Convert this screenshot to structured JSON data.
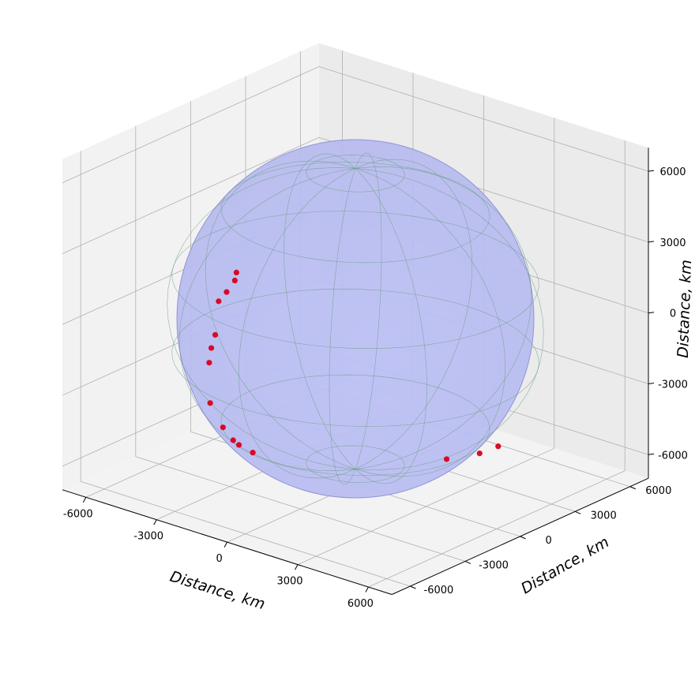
{
  "chart_data": {
    "type": "scatter3d",
    "xlabel": "Distance, km",
    "ylabel": "Distance, km",
    "zlabel": "Distance, km",
    "xlim": [
      -7000,
      7000
    ],
    "ylim": [
      -7000,
      7000
    ],
    "zlim": [
      -7000,
      7000
    ],
    "x_ticks": [
      "-6000",
      "-3000",
      "0",
      "3000",
      "6000"
    ],
    "y_ticks": [
      "-6000",
      "-3000",
      "0",
      "3000",
      "6000"
    ],
    "z_ticks": [
      "6000",
      "3000",
      "0",
      "-3000",
      "-6000"
    ],
    "grid": true,
    "sphere": {
      "radius_km": 6371,
      "color": "#a8acf0"
    },
    "point_color": "#d9001b",
    "points": [
      {
        "x": -6300,
        "y": 1600,
        "z": -600
      },
      {
        "x": -6290,
        "y": 1500,
        "z": -900
      },
      {
        "x": -6250,
        "y": 1000,
        "z": -1200
      },
      {
        "x": -6200,
        "y": 500,
        "z": -1400
      },
      {
        "x": -5800,
        "y": -200,
        "z": -2450
      },
      {
        "x": -5500,
        "y": -800,
        "z": -2700
      },
      {
        "x": -5200,
        "y": -1300,
        "z": -3050
      },
      {
        "x": -3600,
        "y": -3300,
        "z": -3550
      },
      {
        "x": -2200,
        "y": -4400,
        "z": -3750
      },
      {
        "x": -1300,
        "y": -5000,
        "z": -3800
      },
      {
        "x": -900,
        "y": -5200,
        "z": -3800
      },
      {
        "x": 0,
        "y": -5600,
        "z": -3700
      },
      {
        "x": 5200,
        "y": -1700,
        "z": -3700
      },
      {
        "x": 5900,
        "y": -800,
        "z": -3550
      },
      {
        "x": 6300,
        "y": -300,
        "z": -3300
      }
    ]
  }
}
